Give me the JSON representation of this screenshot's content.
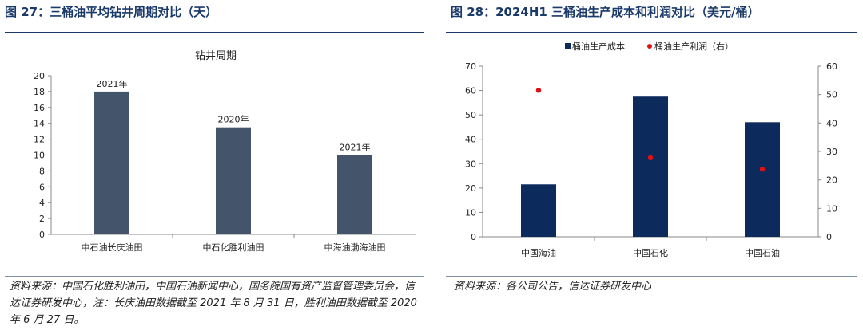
{
  "left": {
    "figure_title": "图 27：三桶油平均钻井周期对比（天）",
    "source": "资料来源：中国石化胜利油田，中国石油新闻中心，国务院国有资产监督管理委员会，信达证券研发中心，注：长庆油田数据截至 2021 年 8 月 31 日，胜利油田数据截至 2020 年 6 月 27 日。"
  },
  "right": {
    "figure_title": "图 28：2024H1 三桶油生产成本和利润对比（美元/桶）",
    "source": "资料来源：各公司公告，信达证券研发中心"
  },
  "chart_data": [
    {
      "type": "bar",
      "title": "钻井周期",
      "categories": [
        "中石油长庆油田",
        "中石化胜利油田",
        "中海油渤海油田"
      ],
      "values": [
        18,
        13.5,
        10
      ],
      "data_labels": [
        "2021年",
        "2020年",
        "2021年"
      ],
      "ylim": [
        0,
        20
      ],
      "yticks": [
        0,
        2,
        4,
        6,
        8,
        10,
        12,
        14,
        16,
        18,
        20
      ],
      "bar_color": "#44546a",
      "grid": false
    },
    {
      "type": "bar",
      "categories": [
        "中国海油",
        "中国石化",
        "中国石油"
      ],
      "series": [
        {
          "name": "桶油生产成本",
          "kind": "bar",
          "axis": "left",
          "values": [
            21.5,
            57.5,
            47
          ],
          "color": "#0d2a5c"
        },
        {
          "name": "桶油生产利润（右）",
          "kind": "scatter",
          "axis": "right",
          "values": [
            51.5,
            27.8,
            23.8
          ],
          "color": "#e01010"
        }
      ],
      "ylim": [
        0,
        70
      ],
      "yticks": [
        0,
        10,
        20,
        30,
        40,
        50,
        60,
        70
      ],
      "ylim_right": [
        0,
        60
      ],
      "yticks_right": [
        0,
        10,
        20,
        30,
        40,
        50,
        60
      ],
      "legend_position": "top",
      "grid": false
    }
  ]
}
